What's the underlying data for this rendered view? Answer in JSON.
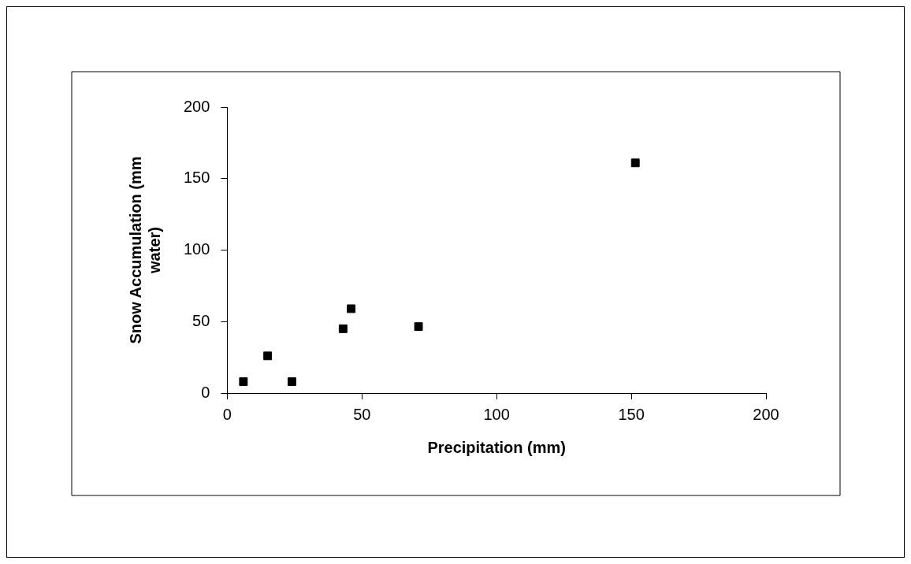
{
  "chart_data": {
    "type": "scatter",
    "xlabel": "Precipitation (mm)",
    "ylabel": "Snow Accumulation (mm water)",
    "x": [
      6,
      15,
      24,
      43,
      46,
      71,
      151.5
    ],
    "values": [
      8,
      26,
      8,
      45,
      59,
      46.5,
      161
    ],
    "color": "#000000",
    "marker": "square",
    "xlim": [
      0,
      200
    ],
    "xticks": [
      0,
      50,
      100,
      150,
      200
    ],
    "ylim": [
      0,
      200
    ],
    "yticks": [
      0,
      50,
      100,
      150,
      200
    ],
    "grid": false,
    "legend": false
  }
}
